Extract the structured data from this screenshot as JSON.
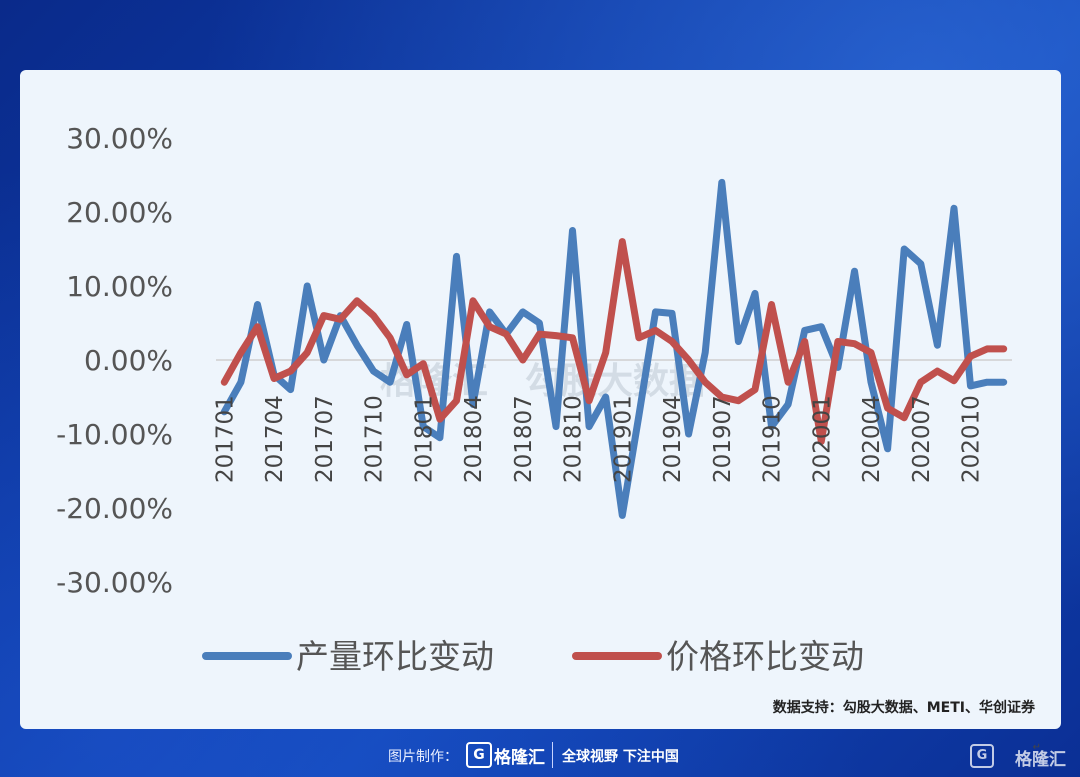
{
  "chart_data": {
    "type": "line",
    "ylim": [
      -0.3,
      0.3
    ],
    "y_ticks": [
      "30.00%",
      "20.00%",
      "10.00%",
      "0.00%",
      "-10.00%",
      "-20.00%",
      "-30.00%"
    ],
    "y_tick_values": [
      0.3,
      0.2,
      0.1,
      0.0,
      -0.1,
      -0.2,
      -0.3
    ],
    "x_tick_labels": [
      "201701",
      "201704",
      "201707",
      "201710",
      "201801",
      "201804",
      "201807",
      "201810",
      "201901",
      "201904",
      "201907",
      "201910",
      "202001",
      "202004",
      "202007",
      "202010"
    ],
    "x": [
      "201701",
      "201702",
      "201703",
      "201704",
      "201705",
      "201706",
      "201707",
      "201708",
      "201709",
      "201710",
      "201711",
      "201712",
      "201801",
      "201802",
      "201803",
      "201804",
      "201805",
      "201806",
      "201807",
      "201808",
      "201809",
      "201810",
      "201811",
      "201812",
      "201901",
      "201902",
      "201903",
      "201904",
      "201905",
      "201906",
      "201907",
      "201908",
      "201909",
      "201910",
      "201911",
      "201912",
      "202001",
      "202002",
      "202003",
      "202004",
      "202005",
      "202006",
      "202007",
      "202008",
      "202009",
      "202010",
      "202011",
      "202012"
    ],
    "series": [
      {
        "name": "产量环比变动",
        "color": "#4a7ebb",
        "values": [
          -0.07,
          -0.03,
          0.075,
          -0.02,
          -0.04,
          0.1,
          0.0,
          0.06,
          0.02,
          -0.015,
          -0.03,
          0.048,
          -0.09,
          -0.105,
          0.14,
          -0.06,
          0.065,
          0.035,
          0.065,
          0.05,
          -0.09,
          0.175,
          -0.09,
          -0.05,
          -0.21,
          -0.075,
          0.065,
          0.063,
          -0.1,
          0.01,
          0.24,
          0.025,
          0.09,
          -0.09,
          -0.06,
          0.04,
          0.045,
          -0.01,
          0.12,
          -0.03,
          -0.12,
          0.15,
          0.13,
          0.02,
          0.205,
          -0.035,
          -0.03,
          -0.03
        ]
      },
      {
        "name": "价格环比变动",
        "color": "#c0504d",
        "values": [
          -0.03,
          0.01,
          0.045,
          -0.025,
          -0.015,
          0.01,
          0.06,
          0.055,
          0.08,
          0.06,
          0.03,
          -0.02,
          -0.005,
          -0.08,
          -0.055,
          0.08,
          0.045,
          0.035,
          0.0,
          0.035,
          0.033,
          0.03,
          -0.055,
          0.01,
          0.16,
          0.03,
          0.04,
          0.025,
          0.0,
          -0.03,
          -0.05,
          -0.055,
          -0.04,
          0.075,
          -0.03,
          0.025,
          -0.11,
          0.025,
          0.022,
          0.01,
          -0.065,
          -0.078,
          -0.03,
          -0.015,
          -0.028,
          0.005,
          0.015,
          0.015
        ]
      }
    ],
    "legend_position": "bottom",
    "source": "数据支持：勾股大数据、METI、华创证券",
    "watermark": [
      "格隆汇",
      "勾股大数据"
    ]
  },
  "footer": {
    "credit": "图片制作：",
    "logo_mark": "G",
    "logo_name": "格隆汇",
    "slogan": "全球视野 下注中国"
  },
  "corner_logo": {
    "mark": "G",
    "name": "格隆汇"
  },
  "colors": {
    "background": "#0d3aa6",
    "card": "#eef5fc",
    "production": "#4a7ebb",
    "price": "#c0504d"
  }
}
